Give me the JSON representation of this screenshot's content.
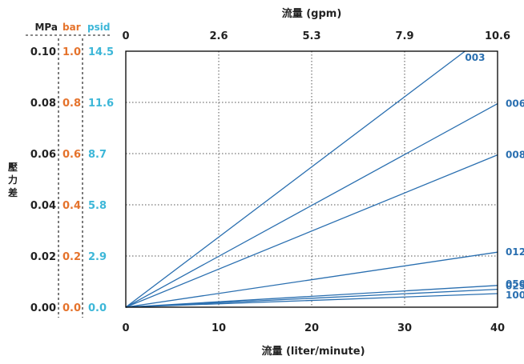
{
  "chart_data": {
    "type": "line",
    "title": "",
    "xlabel": "流量 (liter/minute)",
    "x2label": "流量 (gpm)",
    "ylabel": "壓力差",
    "xlim": [
      0,
      40
    ],
    "ylim": [
      0,
      0.1
    ],
    "x_ticks": [
      "0",
      "10",
      "20",
      "30",
      "40"
    ],
    "x2_ticks": [
      "0",
      "2.6",
      "5.3",
      "7.9",
      "10.6"
    ],
    "y_units": [
      "MPa",
      "bar",
      "psid"
    ],
    "y_ticks": {
      "MPa": [
        "0.00",
        "0.02",
        "0.04",
        "0.06",
        "0.08",
        "0.10"
      ],
      "bar": [
        "0.0",
        "0.2",
        "0.4",
        "0.6",
        "0.8",
        "1.0"
      ],
      "psid": [
        "0.0",
        "2.9",
        "5.8",
        "8.7",
        "11.6",
        "14.5"
      ]
    },
    "grid": true,
    "colors": {
      "MPa": "#222222",
      "bar": "#e5732c",
      "psid": "#3db7d8",
      "series": "#2a6fb0",
      "series_label": "#2a6fb0",
      "grid": "#555555"
    },
    "series": [
      {
        "name": "003",
        "x": [
          0,
          36.5
        ],
        "y": [
          0,
          0.1
        ]
      },
      {
        "name": "006",
        "x": [
          0,
          40
        ],
        "y": [
          0,
          0.0795
        ]
      },
      {
        "name": "008",
        "x": [
          0,
          40
        ],
        "y": [
          0,
          0.0595
        ]
      },
      {
        "name": "012",
        "x": [
          0,
          40
        ],
        "y": [
          0,
          0.0215
        ]
      },
      {
        "name": "025",
        "x": [
          0,
          40
        ],
        "y": [
          0,
          0.007
        ]
      },
      {
        "name": "050",
        "x": [
          0,
          40
        ],
        "y": [
          0,
          0.0085
        ]
      },
      {
        "name": "100",
        "x": [
          0,
          40
        ],
        "y": [
          0,
          0.0053
        ]
      }
    ]
  }
}
